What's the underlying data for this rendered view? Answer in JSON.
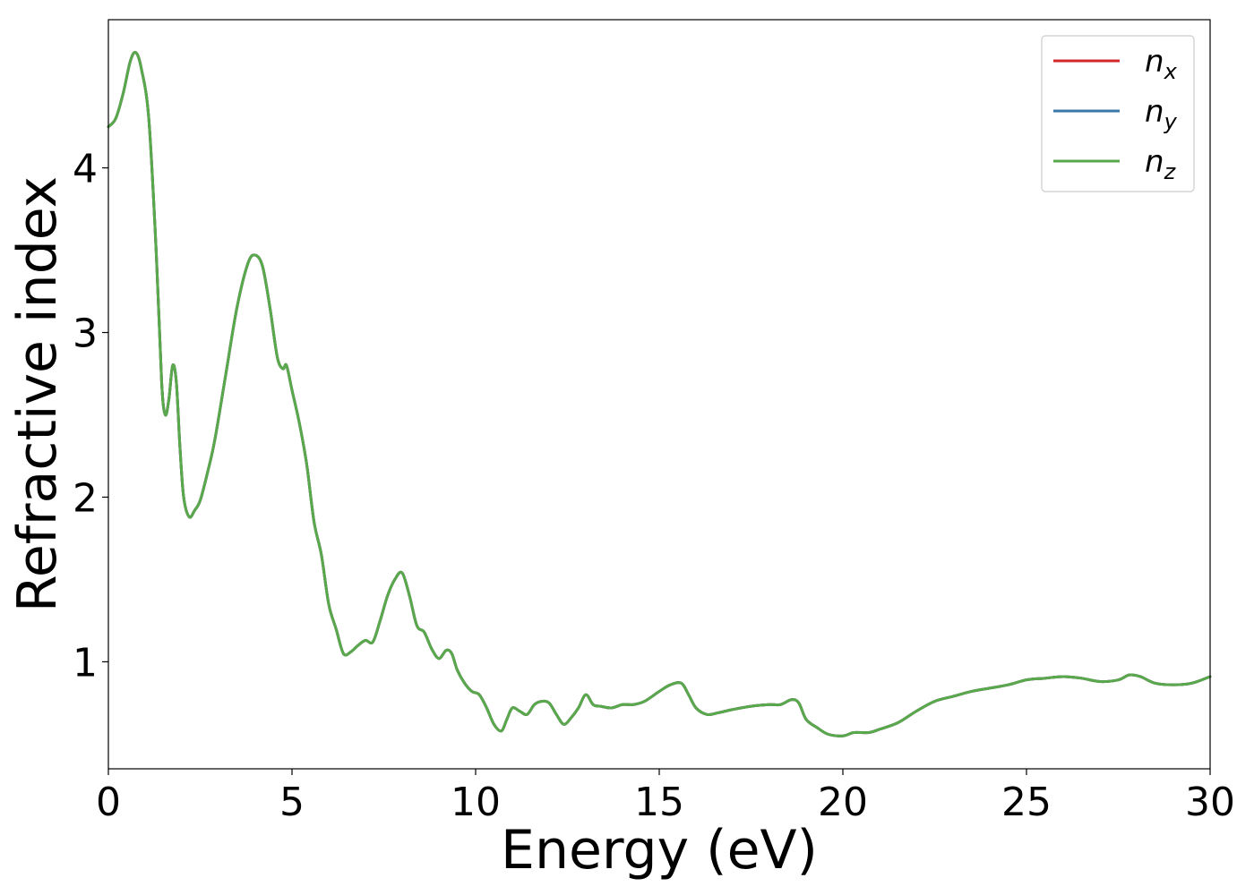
{
  "chart_data": {
    "type": "line",
    "title": "",
    "xlabel": "Energy (eV)",
    "ylabel": "Refractive index",
    "xlim": [
      0,
      30
    ],
    "ylim": [
      0.35,
      4.9
    ],
    "xticks": [
      0,
      5,
      10,
      15,
      20,
      25,
      30
    ],
    "xtick_labels": [
      "0",
      "5",
      "10",
      "15",
      "20",
      "25",
      "30"
    ],
    "yticks": [
      1,
      2,
      3,
      4
    ],
    "ytick_labels": [
      "1",
      "2",
      "3",
      "4"
    ],
    "grid": false,
    "legend_position": "top-right",
    "x": [
      0,
      0.2,
      0.4,
      0.6,
      0.75,
      0.9,
      1.1,
      1.3,
      1.45,
      1.55,
      1.65,
      1.75,
      1.85,
      1.95,
      2.05,
      2.2,
      2.35,
      2.5,
      2.7,
      2.9,
      3.2,
      3.5,
      3.8,
      4.0,
      4.2,
      4.4,
      4.6,
      4.75,
      4.85,
      5.0,
      5.2,
      5.4,
      5.6,
      5.8,
      6.0,
      6.2,
      6.4,
      6.6,
      6.8,
      7.0,
      7.2,
      7.4,
      7.6,
      7.8,
      8.0,
      8.2,
      8.4,
      8.6,
      8.8,
      9.0,
      9.2,
      9.35,
      9.5,
      9.7,
      9.9,
      10.1,
      10.3,
      10.5,
      10.7,
      10.85,
      11.0,
      11.2,
      11.4,
      11.6,
      11.8,
      12.0,
      12.2,
      12.4,
      12.6,
      12.8,
      13.0,
      13.2,
      13.4,
      13.7,
      14.0,
      14.3,
      14.6,
      15.0,
      15.3,
      15.6,
      15.8,
      16.0,
      16.3,
      16.6,
      17.0,
      17.5,
      18.0,
      18.3,
      18.6,
      18.8,
      19.0,
      19.3,
      19.6,
      20.0,
      20.3,
      20.7,
      21.0,
      21.5,
      22.0,
      22.5,
      23.0,
      23.5,
      24.0,
      24.5,
      25.0,
      25.5,
      26.0,
      26.5,
      27.0,
      27.5,
      27.8,
      28.1,
      28.5,
      29.0,
      29.5,
      30.0
    ],
    "series": [
      {
        "name": "n_x",
        "label_base": "n",
        "label_sub": "x",
        "color": "#d62728",
        "values": [
          4.25,
          4.3,
          4.45,
          4.65,
          4.7,
          4.6,
          4.3,
          3.5,
          2.7,
          2.5,
          2.6,
          2.8,
          2.7,
          2.3,
          2.0,
          1.88,
          1.92,
          1.98,
          2.15,
          2.35,
          2.75,
          3.15,
          3.42,
          3.47,
          3.4,
          3.15,
          2.85,
          2.78,
          2.8,
          2.65,
          2.45,
          2.2,
          1.85,
          1.65,
          1.35,
          1.2,
          1.05,
          1.06,
          1.1,
          1.13,
          1.12,
          1.25,
          1.4,
          1.5,
          1.54,
          1.4,
          1.22,
          1.18,
          1.08,
          1.02,
          1.07,
          1.05,
          0.95,
          0.87,
          0.82,
          0.8,
          0.72,
          0.62,
          0.58,
          0.65,
          0.72,
          0.7,
          0.68,
          0.74,
          0.76,
          0.75,
          0.68,
          0.62,
          0.66,
          0.72,
          0.8,
          0.74,
          0.73,
          0.72,
          0.74,
          0.74,
          0.76,
          0.82,
          0.86,
          0.87,
          0.8,
          0.72,
          0.68,
          0.69,
          0.71,
          0.73,
          0.74,
          0.74,
          0.77,
          0.75,
          0.65,
          0.6,
          0.56,
          0.55,
          0.57,
          0.57,
          0.59,
          0.63,
          0.7,
          0.76,
          0.79,
          0.82,
          0.84,
          0.86,
          0.89,
          0.9,
          0.91,
          0.9,
          0.88,
          0.89,
          0.92,
          0.91,
          0.87,
          0.86,
          0.87,
          0.91
        ]
      },
      {
        "name": "n_y",
        "label_base": "n",
        "label_sub": "y",
        "color": "#3a78a8",
        "values": [
          4.25,
          4.3,
          4.45,
          4.65,
          4.7,
          4.6,
          4.3,
          3.5,
          2.7,
          2.5,
          2.6,
          2.8,
          2.7,
          2.3,
          2.0,
          1.88,
          1.92,
          1.98,
          2.15,
          2.35,
          2.75,
          3.15,
          3.42,
          3.47,
          3.4,
          3.15,
          2.85,
          2.78,
          2.8,
          2.65,
          2.45,
          2.2,
          1.85,
          1.65,
          1.35,
          1.2,
          1.05,
          1.06,
          1.1,
          1.13,
          1.12,
          1.25,
          1.4,
          1.5,
          1.54,
          1.4,
          1.22,
          1.18,
          1.08,
          1.02,
          1.07,
          1.05,
          0.95,
          0.87,
          0.82,
          0.8,
          0.72,
          0.62,
          0.58,
          0.65,
          0.72,
          0.7,
          0.68,
          0.74,
          0.76,
          0.75,
          0.68,
          0.62,
          0.66,
          0.72,
          0.8,
          0.74,
          0.73,
          0.72,
          0.74,
          0.74,
          0.76,
          0.82,
          0.86,
          0.87,
          0.8,
          0.72,
          0.68,
          0.69,
          0.71,
          0.73,
          0.74,
          0.74,
          0.77,
          0.75,
          0.65,
          0.6,
          0.56,
          0.55,
          0.57,
          0.57,
          0.59,
          0.63,
          0.7,
          0.76,
          0.79,
          0.82,
          0.84,
          0.86,
          0.89,
          0.9,
          0.91,
          0.9,
          0.88,
          0.89,
          0.92,
          0.91,
          0.87,
          0.86,
          0.87,
          0.91
        ]
      },
      {
        "name": "n_z",
        "label_base": "n",
        "label_sub": "z",
        "color": "#59a84b",
        "values": [
          4.25,
          4.3,
          4.45,
          4.65,
          4.7,
          4.6,
          4.3,
          3.5,
          2.7,
          2.5,
          2.6,
          2.8,
          2.7,
          2.3,
          2.0,
          1.88,
          1.92,
          1.98,
          2.15,
          2.35,
          2.75,
          3.15,
          3.42,
          3.47,
          3.4,
          3.15,
          2.85,
          2.78,
          2.8,
          2.65,
          2.45,
          2.2,
          1.85,
          1.65,
          1.35,
          1.2,
          1.05,
          1.06,
          1.1,
          1.13,
          1.12,
          1.25,
          1.4,
          1.5,
          1.54,
          1.4,
          1.22,
          1.18,
          1.08,
          1.02,
          1.07,
          1.05,
          0.95,
          0.87,
          0.82,
          0.8,
          0.72,
          0.62,
          0.58,
          0.65,
          0.72,
          0.7,
          0.68,
          0.74,
          0.76,
          0.75,
          0.68,
          0.62,
          0.66,
          0.72,
          0.8,
          0.74,
          0.73,
          0.72,
          0.74,
          0.74,
          0.76,
          0.82,
          0.86,
          0.87,
          0.8,
          0.72,
          0.68,
          0.69,
          0.71,
          0.73,
          0.74,
          0.74,
          0.77,
          0.75,
          0.65,
          0.6,
          0.56,
          0.55,
          0.57,
          0.57,
          0.59,
          0.63,
          0.7,
          0.76,
          0.79,
          0.82,
          0.84,
          0.86,
          0.89,
          0.9,
          0.91,
          0.9,
          0.88,
          0.89,
          0.92,
          0.91,
          0.87,
          0.86,
          0.87,
          0.91
        ]
      }
    ]
  }
}
